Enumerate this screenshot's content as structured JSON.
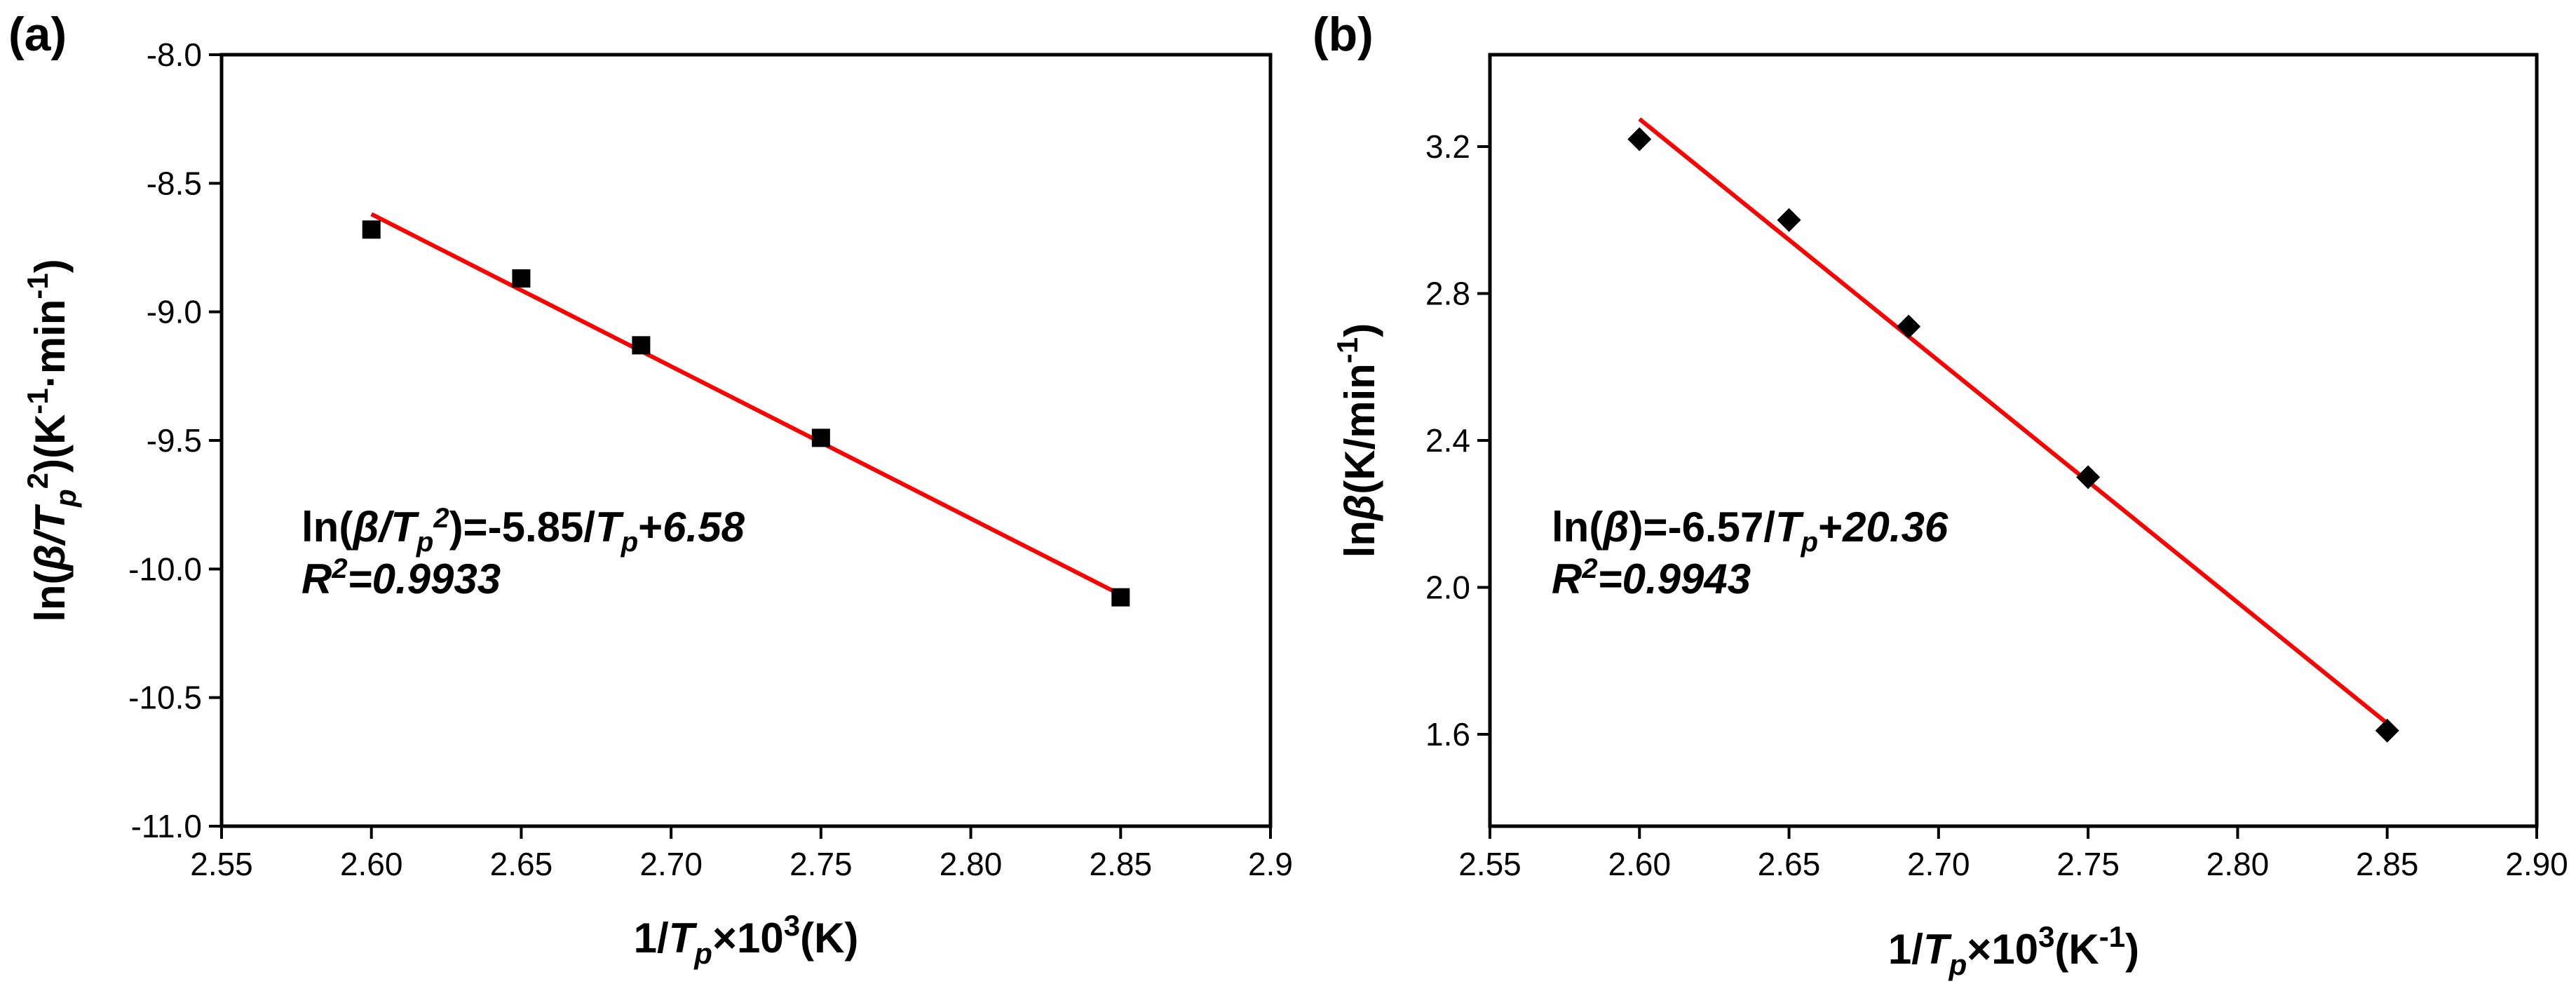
{
  "chart_data": [
    {
      "type": "scatter",
      "panel_label": "(a)",
      "x": [
        2.6,
        2.65,
        2.69,
        2.75,
        2.85
      ],
      "y": [
        -8.68,
        -8.87,
        -9.13,
        -9.49,
        -10.11
      ],
      "fit": {
        "slope": -5.85,
        "intercept": 6.58,
        "x_range": [
          2.6,
          2.85
        ],
        "y_range": [
          -8.62,
          -10.1
        ]
      },
      "marker": "square",
      "xlim": [
        2.55,
        2.9
      ],
      "ylim": [
        -11.0,
        -8.0
      ],
      "xticks": [
        "2.55",
        "2.60",
        "2.65",
        "2.70",
        "2.75",
        "2.80",
        "2.85",
        "2.9"
      ],
      "yticks": [
        "-8.0",
        "-8.5",
        "-9.0",
        "-9.5",
        "-10.0",
        "-10.5",
        "-11.0"
      ],
      "ylabel": {
        "pre": "ln(",
        "beta": "β",
        "slash": "/",
        "T": "T",
        "p": "p",
        "sup2": "2",
        "mid": ")(K",
        "supm1": "-1",
        "dot": "·",
        "min": "min",
        "supm1b": "-1",
        "close": ")"
      },
      "xlabel": {
        "pre": "1/",
        "T": "T",
        "p": "p",
        "times": "×10",
        "sup3": "3",
        "unit": "(K)"
      },
      "equation": {
        "pre": "ln(",
        "beta": "β",
        "slash": "/T",
        "p": "p",
        "sup2": "2",
        "mid": ")=-5.85/",
        "T": "T",
        "p2": "p",
        "plus": "+",
        "b": "6.58"
      },
      "r2": {
        "R": "R",
        "sup2": "2",
        "val": "=0.9933"
      }
    },
    {
      "type": "scatter",
      "panel_label": "(b)",
      "x": [
        2.6,
        2.65,
        2.69,
        2.75,
        2.85
      ],
      "y": [
        3.22,
        3.0,
        2.71,
        2.3,
        1.61
      ],
      "fit": {
        "slope": -6.57,
        "intercept": 20.36,
        "x_range": [
          2.6,
          2.85
        ],
        "y_range": [
          3.275,
          1.63
        ]
      },
      "marker": "diamond",
      "xlim": [
        2.55,
        2.9
      ],
      "ylim": [
        1.35,
        3.45
      ],
      "xticks": [
        "2.55",
        "2.60",
        "2.65",
        "2.70",
        "2.75",
        "2.80",
        "2.85",
        "2.90"
      ],
      "ytick_values": [
        1.6,
        2.0,
        2.4,
        2.8,
        3.2
      ],
      "yticks": [
        "1.6",
        "2.0",
        "2.4",
        "2.8",
        "3.2"
      ],
      "ylabel": {
        "pre": "ln",
        "beta": "β",
        "unit": "(K/min",
        "sup": "-1",
        "close": ")"
      },
      "xlabel": {
        "pre": "1/",
        "T": "T",
        "p": "p",
        "times": "×10",
        "sup3": "3",
        "unit": "(K",
        "supu": "-1",
        "close": ")"
      },
      "equation": {
        "pre": "ln(",
        "beta": "β",
        "mid": ")=-6.57/",
        "T": "T",
        "p": "p",
        "plus": "+",
        "b": "20.36"
      },
      "r2": {
        "R": "R",
        "sup2": "2",
        "val": "=0.9943"
      }
    }
  ]
}
